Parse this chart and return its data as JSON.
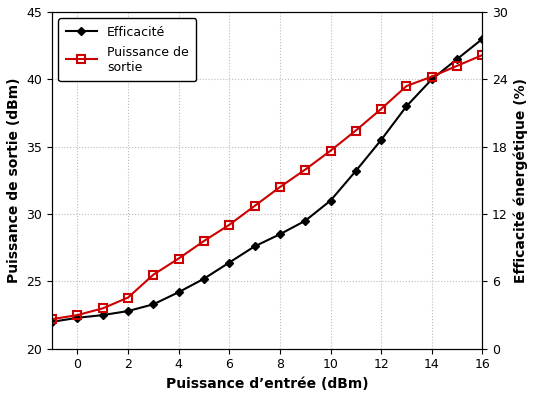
{
  "x": [
    -1,
    0,
    1,
    2,
    3,
    4,
    5,
    6,
    7,
    8,
    9,
    10,
    11,
    12,
    13,
    14,
    15,
    16
  ],
  "puissance_sortie_dbm": [
    22.2,
    22.5,
    23.0,
    23.8,
    25.5,
    26.7,
    28.0,
    29.2,
    30.6,
    32.0,
    33.3,
    34.7,
    36.2,
    37.8,
    39.5,
    40.2,
    41.0,
    41.8
  ],
  "efficacite_dbm": [
    22.0,
    22.3,
    22.5,
    22.8,
    23.3,
    24.2,
    25.2,
    26.4,
    27.6,
    28.5,
    29.5,
    31.0,
    33.2,
    35.5,
    38.0,
    40.0,
    41.5,
    43.0
  ],
  "xlabel": "Puissance d’entrée (dBm)",
  "ylabel_left": "Puissance de sortie (dBm)",
  "ylabel_right": "Efficacité énergétique (%)",
  "legend_efficacite": "Efficacité",
  "legend_puissance": "Puissance de\nsortie",
  "xlim": [
    -1,
    16
  ],
  "ylim_left": [
    20,
    45
  ],
  "ylim_right": [
    0,
    30
  ],
  "xticks": [
    0,
    2,
    4,
    6,
    8,
    10,
    12,
    14,
    16
  ],
  "yticks_left": [
    20,
    25,
    30,
    35,
    40,
    45
  ],
  "yticks_right": [
    0,
    6,
    12,
    18,
    24,
    30
  ],
  "color_efficacite": "#000000",
  "color_puissance": "#cc0000",
  "grid_color": "#bbbbbb",
  "background_color": "#ffffff"
}
